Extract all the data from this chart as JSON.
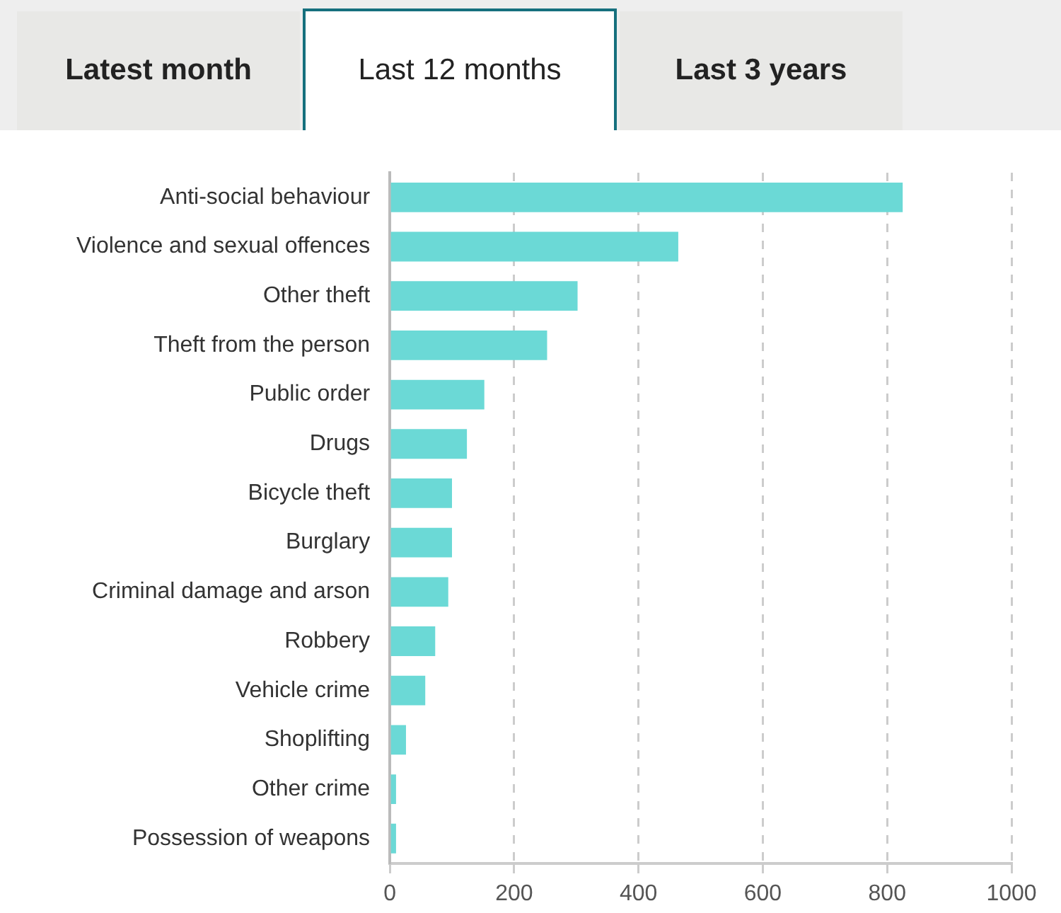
{
  "chart_data": {
    "type": "bar",
    "orientation": "horizontal",
    "categories": [
      "Anti-social behaviour",
      "Violence and sexual offences",
      "Other theft",
      "Theft from the person",
      "Public order",
      "Drugs",
      "Bicycle theft",
      "Burglary",
      "Criminal damage and arson",
      "Robbery",
      "Vehicle crime",
      "Shoplifting",
      "Other crime",
      "Possession of weapons"
    ],
    "values": [
      825,
      464,
      302,
      253,
      152,
      124,
      100,
      100,
      94,
      73,
      57,
      26,
      10,
      10
    ],
    "color": "#6bd9d6",
    "xlim": [
      0,
      1000
    ],
    "xticks": [
      0,
      200,
      400,
      600,
      800,
      1000
    ],
    "grid": "x",
    "legend": false,
    "annotations": [
      "Latest month",
      "Last 12 months",
      "Last 3 years"
    ]
  }
}
